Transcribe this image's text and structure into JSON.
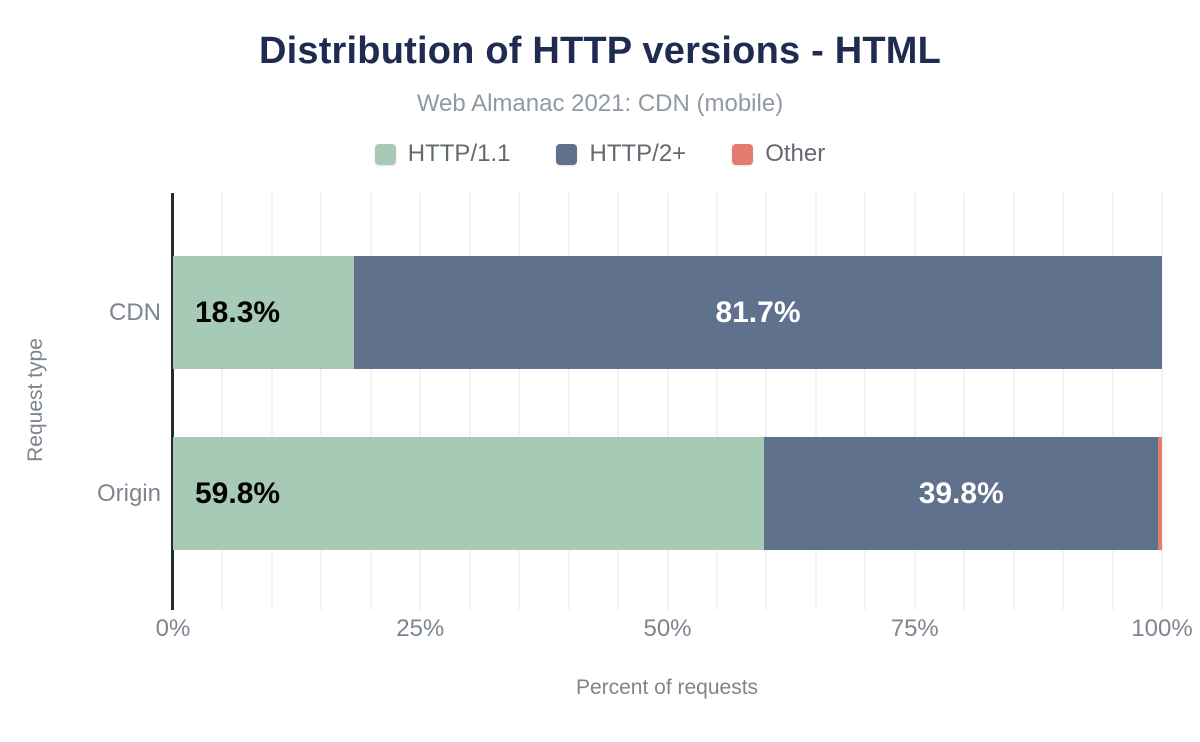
{
  "title": "Distribution of HTTP versions - HTML",
  "subtitle": "Web Almanac 2021: CDN (mobile)",
  "legend": {
    "items": [
      {
        "label": "HTTP/1.1",
        "color": "#a7cab7"
      },
      {
        "label": "HTTP/2+",
        "color": "#60718e"
      },
      {
        "label": "Other",
        "color": "#e47c71"
      }
    ]
  },
  "chart_data": {
    "type": "bar",
    "orientation": "horizontal",
    "stacked": true,
    "unit": "%",
    "title": "Distribution of HTTP versions - HTML",
    "subtitle": "Web Almanac 2021: CDN (mobile)",
    "categories": [
      "CDN",
      "Origin"
    ],
    "series": [
      {
        "name": "HTTP/1.1",
        "color": "#a7cab7",
        "values": [
          18.3,
          59.8
        ]
      },
      {
        "name": "HTTP/2+",
        "color": "#60718e",
        "values": [
          81.7,
          39.8
        ]
      },
      {
        "name": "Other",
        "color": "#e47c71",
        "values": [
          0.0,
          0.4
        ]
      }
    ],
    "data_labels": {
      "CDN": [
        "18.3%",
        "81.7%",
        null
      ],
      "Origin": [
        "59.8%",
        "39.8%",
        null
      ]
    },
    "xlabel": "Percent of requests",
    "ylabel": "Request type",
    "xlim": [
      0,
      100
    ],
    "xtick_labels": [
      "0%",
      "25%",
      "50%",
      "75%",
      "100%"
    ],
    "xtick_values": [
      0,
      25,
      50,
      75,
      100
    ],
    "grid": {
      "vertical": true,
      "interval_percent": 5
    },
    "legend_position": "top"
  },
  "colors": {
    "title": "#1f2b50",
    "subtitle": "#9199a1",
    "legend_text": "#62696f",
    "axis_text": "#7d868e",
    "axis_line": "#26292e",
    "gridline": "#f2f2f2",
    "bar_label_on_light": "#000000",
    "bar_label_on_dark": "#ffffff",
    "background": "#ffffff"
  }
}
